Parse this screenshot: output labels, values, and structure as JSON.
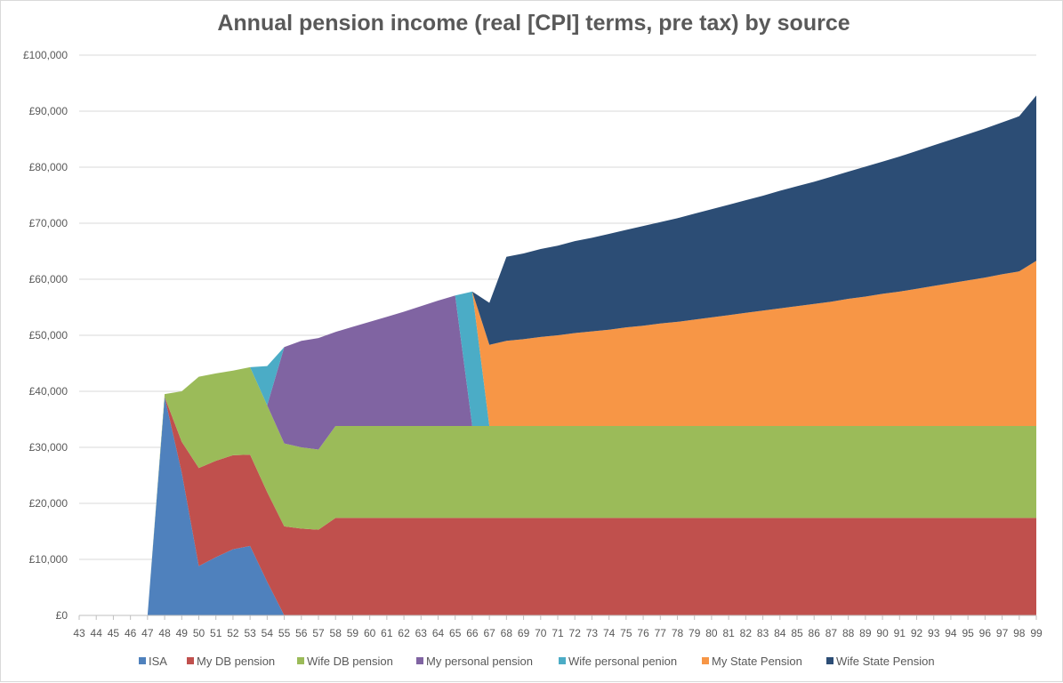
{
  "chart_data": {
    "type": "area",
    "stacked": true,
    "title": "Annual pension income (real [CPI] terms, pre tax) by source",
    "xlabel": "",
    "ylabel": "",
    "ylim": [
      0,
      100000
    ],
    "y_ticks": [
      0,
      10000,
      20000,
      30000,
      40000,
      50000,
      60000,
      70000,
      80000,
      90000,
      100000
    ],
    "y_tick_labels": [
      "£0",
      "£10,000",
      "£20,000",
      "£30,000",
      "£40,000",
      "£50,000",
      "£60,000",
      "£70,000",
      "£80,000",
      "£90,000",
      "£100,000"
    ],
    "grid": "horizontal",
    "legend_position": "bottom",
    "categories": [
      43,
      44,
      45,
      46,
      47,
      48,
      49,
      50,
      51,
      52,
      53,
      54,
      55,
      56,
      57,
      58,
      59,
      60,
      61,
      62,
      63,
      64,
      65,
      66,
      67,
      68,
      69,
      70,
      71,
      72,
      73,
      74,
      75,
      76,
      77,
      78,
      79,
      80,
      81,
      82,
      83,
      84,
      85,
      86,
      87,
      88,
      89,
      90,
      91,
      92,
      93,
      94,
      95,
      96,
      97,
      98,
      99
    ],
    "series": [
      {
        "name": "ISA",
        "color": "#4F81BD",
        "values": [
          0,
          0,
          0,
          0,
          0,
          39000,
          25500,
          8800,
          10400,
          11800,
          12400,
          6000,
          0,
          0,
          0,
          0,
          0,
          0,
          0,
          0,
          0,
          0,
          0,
          0,
          0,
          0,
          0,
          0,
          0,
          0,
          0,
          0,
          0,
          0,
          0,
          0,
          0,
          0,
          0,
          0,
          0,
          0,
          0,
          0,
          0,
          0,
          0,
          0,
          0,
          0,
          0,
          0,
          0,
          0,
          0,
          0,
          0
        ]
      },
      {
        "name": "My DB pension",
        "color": "#C0504D",
        "values": [
          0,
          0,
          0,
          0,
          0,
          0,
          5500,
          17500,
          17200,
          16800,
          16300,
          16000,
          15900,
          15500,
          15300,
          17400,
          17400,
          17400,
          17400,
          17400,
          17400,
          17400,
          17400,
          17400,
          17400,
          17400,
          17400,
          17400,
          17400,
          17400,
          17400,
          17400,
          17400,
          17400,
          17400,
          17400,
          17400,
          17400,
          17400,
          17400,
          17400,
          17400,
          17400,
          17400,
          17400,
          17400,
          17400,
          17400,
          17400,
          17400,
          17400,
          17400,
          17400,
          17400,
          17400,
          17400,
          17400
        ]
      },
      {
        "name": "Wife DB pension",
        "color": "#9BBB59",
        "values": [
          0,
          0,
          0,
          0,
          0,
          500,
          9000,
          16300,
          15600,
          15100,
          15600,
          15500,
          14800,
          14500,
          14300,
          16400,
          16400,
          16400,
          16400,
          16400,
          16400,
          16400,
          16400,
          16400,
          16400,
          16400,
          16400,
          16400,
          16400,
          16400,
          16400,
          16400,
          16400,
          16400,
          16400,
          16400,
          16400,
          16400,
          16400,
          16400,
          16400,
          16400,
          16400,
          16400,
          16400,
          16400,
          16400,
          16400,
          16400,
          16400,
          16400,
          16400,
          16400,
          16400,
          16400,
          16400,
          16400
        ]
      },
      {
        "name": "My personal pension",
        "color": "#8064A2",
        "values": [
          0,
          0,
          0,
          0,
          0,
          0,
          0,
          0,
          0,
          0,
          0,
          0,
          17200,
          19000,
          19900,
          16800,
          17700,
          18600,
          19500,
          20400,
          21400,
          22400,
          23300,
          0,
          0,
          0,
          0,
          0,
          0,
          0,
          0,
          0,
          0,
          0,
          0,
          0,
          0,
          0,
          0,
          0,
          0,
          0,
          0,
          0,
          0,
          0,
          0,
          0,
          0,
          0,
          0,
          0,
          0,
          0,
          0,
          0,
          0
        ]
      },
      {
        "name": "Wife personal penion",
        "color": "#4BACC6",
        "values": [
          0,
          0,
          0,
          0,
          0,
          0,
          0,
          0,
          0,
          0,
          0,
          7000,
          0,
          0,
          0,
          0,
          0,
          0,
          0,
          0,
          0,
          0,
          0,
          24000,
          0,
          0,
          0,
          0,
          0,
          0,
          0,
          0,
          0,
          0,
          0,
          0,
          0,
          0,
          0,
          0,
          0,
          0,
          0,
          0,
          0,
          0,
          0,
          0,
          0,
          0,
          0,
          0,
          0,
          0,
          0,
          0,
          0
        ]
      },
      {
        "name": "My State Pension",
        "color": "#F79646",
        "values": [
          0,
          0,
          0,
          0,
          0,
          0,
          0,
          0,
          0,
          0,
          0,
          0,
          0,
          0,
          0,
          0,
          0,
          0,
          0,
          0,
          0,
          0,
          0,
          0,
          14500,
          15200,
          15500,
          15900,
          16200,
          16600,
          16900,
          17200,
          17600,
          17900,
          18300,
          18600,
          19000,
          19400,
          19800,
          20200,
          20600,
          21000,
          21400,
          21800,
          22200,
          22700,
          23100,
          23600,
          24000,
          24500,
          25000,
          25500,
          26000,
          26500,
          27100,
          27600,
          29500
        ]
      },
      {
        "name": "Wife State Pension",
        "color": "#2C4D75",
        "values": [
          0,
          0,
          0,
          0,
          0,
          0,
          0,
          0,
          0,
          0,
          0,
          0,
          0,
          0,
          0,
          0,
          0,
          0,
          0,
          0,
          0,
          0,
          0,
          0,
          7500,
          15000,
          15300,
          15700,
          16000,
          16400,
          16700,
          17100,
          17400,
          17800,
          18100,
          18500,
          18900,
          19300,
          19700,
          20100,
          20500,
          21000,
          21400,
          21800,
          22300,
          22700,
          23200,
          23600,
          24100,
          24600,
          25100,
          25600,
          26100,
          26600,
          27100,
          27700,
          29500
        ]
      }
    ]
  }
}
